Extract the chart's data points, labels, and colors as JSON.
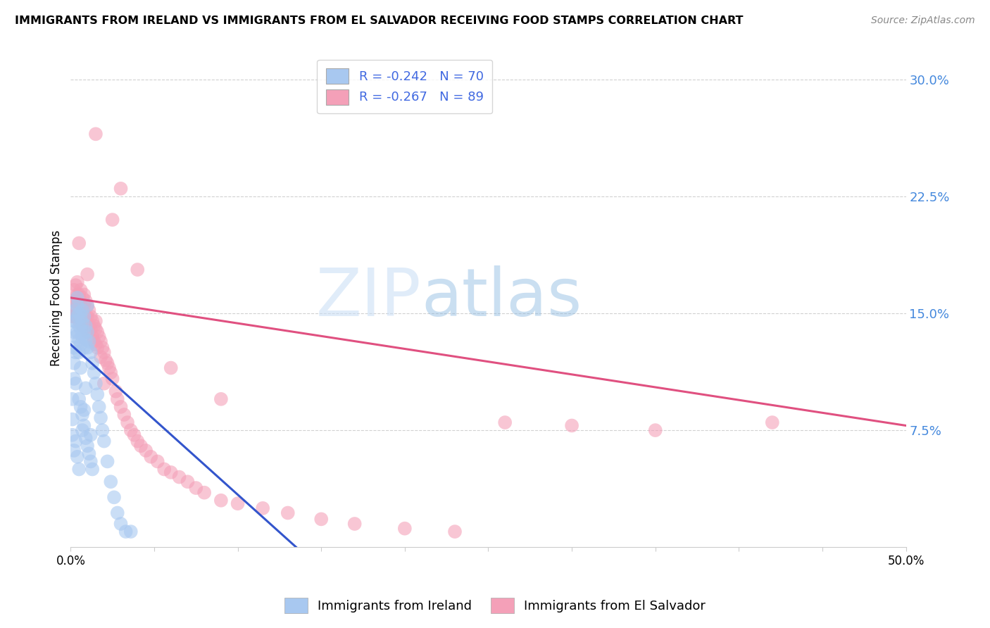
{
  "title": "IMMIGRANTS FROM IRELAND VS IMMIGRANTS FROM EL SALVADOR RECEIVING FOOD STAMPS CORRELATION CHART",
  "source": "Source: ZipAtlas.com",
  "ylabel": "Receiving Food Stamps",
  "ytick_labels": [
    "7.5%",
    "15.0%",
    "22.5%",
    "30.0%"
  ],
  "ytick_values": [
    0.075,
    0.15,
    0.225,
    0.3
  ],
  "xlim": [
    0.0,
    0.5
  ],
  "ylim": [
    0.0,
    0.32
  ],
  "ireland_color": "#a8c8f0",
  "salvador_color": "#f4a0b8",
  "ireland_line_color": "#3355cc",
  "salvador_line_color": "#e05080",
  "ireland_line_x": [
    0.0,
    0.135
  ],
  "ireland_line_y": [
    0.13,
    0.0
  ],
  "salvador_line_x": [
    0.0,
    0.5
  ],
  "salvador_line_y": [
    0.16,
    0.078
  ],
  "ireland_scatter_x": [
    0.001,
    0.001,
    0.001,
    0.002,
    0.002,
    0.002,
    0.002,
    0.002,
    0.003,
    0.003,
    0.003,
    0.003,
    0.003,
    0.004,
    0.004,
    0.004,
    0.004,
    0.005,
    0.005,
    0.005,
    0.005,
    0.005,
    0.006,
    0.006,
    0.006,
    0.006,
    0.007,
    0.007,
    0.007,
    0.007,
    0.008,
    0.008,
    0.008,
    0.008,
    0.009,
    0.009,
    0.009,
    0.01,
    0.01,
    0.01,
    0.011,
    0.011,
    0.012,
    0.012,
    0.013,
    0.013,
    0.014,
    0.015,
    0.016,
    0.017,
    0.018,
    0.019,
    0.02,
    0.022,
    0.024,
    0.026,
    0.028,
    0.03,
    0.033,
    0.036,
    0.002,
    0.003,
    0.004,
    0.005,
    0.006,
    0.007,
    0.008,
    0.009,
    0.01,
    0.012
  ],
  "ireland_scatter_y": [
    0.095,
    0.082,
    0.072,
    0.145,
    0.138,
    0.128,
    0.118,
    0.108,
    0.152,
    0.145,
    0.135,
    0.125,
    0.068,
    0.155,
    0.148,
    0.138,
    0.058,
    0.15,
    0.142,
    0.133,
    0.125,
    0.05,
    0.148,
    0.14,
    0.13,
    0.09,
    0.152,
    0.144,
    0.135,
    0.085,
    0.148,
    0.138,
    0.128,
    0.078,
    0.142,
    0.133,
    0.07,
    0.138,
    0.128,
    0.065,
    0.132,
    0.06,
    0.125,
    0.055,
    0.118,
    0.05,
    0.112,
    0.105,
    0.098,
    0.09,
    0.083,
    0.075,
    0.068,
    0.055,
    0.042,
    0.032,
    0.022,
    0.015,
    0.01,
    0.01,
    0.062,
    0.105,
    0.16,
    0.095,
    0.115,
    0.075,
    0.088,
    0.102,
    0.155,
    0.072
  ],
  "salvador_scatter_x": [
    0.001,
    0.001,
    0.002,
    0.002,
    0.002,
    0.003,
    0.003,
    0.003,
    0.004,
    0.004,
    0.004,
    0.005,
    0.005,
    0.005,
    0.006,
    0.006,
    0.006,
    0.007,
    0.007,
    0.007,
    0.008,
    0.008,
    0.008,
    0.009,
    0.009,
    0.01,
    0.01,
    0.01,
    0.011,
    0.011,
    0.012,
    0.012,
    0.013,
    0.013,
    0.014,
    0.014,
    0.015,
    0.015,
    0.016,
    0.016,
    0.017,
    0.018,
    0.018,
    0.019,
    0.02,
    0.021,
    0.022,
    0.023,
    0.024,
    0.025,
    0.027,
    0.028,
    0.03,
    0.032,
    0.034,
    0.036,
    0.038,
    0.04,
    0.042,
    0.045,
    0.048,
    0.052,
    0.056,
    0.06,
    0.065,
    0.07,
    0.075,
    0.08,
    0.09,
    0.1,
    0.115,
    0.13,
    0.15,
    0.17,
    0.2,
    0.23,
    0.26,
    0.3,
    0.35,
    0.42,
    0.005,
    0.01,
    0.015,
    0.02,
    0.03,
    0.04,
    0.06,
    0.09,
    0.015,
    0.025
  ],
  "salvador_scatter_y": [
    0.155,
    0.148,
    0.165,
    0.158,
    0.148,
    0.168,
    0.158,
    0.148,
    0.17,
    0.162,
    0.152,
    0.162,
    0.155,
    0.145,
    0.165,
    0.158,
    0.148,
    0.16,
    0.152,
    0.142,
    0.162,
    0.155,
    0.145,
    0.158,
    0.148,
    0.155,
    0.148,
    0.138,
    0.152,
    0.142,
    0.148,
    0.14,
    0.145,
    0.135,
    0.142,
    0.132,
    0.14,
    0.13,
    0.138,
    0.128,
    0.135,
    0.132,
    0.122,
    0.128,
    0.125,
    0.12,
    0.118,
    0.115,
    0.112,
    0.108,
    0.1,
    0.095,
    0.09,
    0.085,
    0.08,
    0.075,
    0.072,
    0.068,
    0.065,
    0.062,
    0.058,
    0.055,
    0.05,
    0.048,
    0.045,
    0.042,
    0.038,
    0.035,
    0.03,
    0.028,
    0.025,
    0.022,
    0.018,
    0.015,
    0.012,
    0.01,
    0.08,
    0.078,
    0.075,
    0.08,
    0.195,
    0.175,
    0.145,
    0.105,
    0.23,
    0.178,
    0.115,
    0.095,
    0.265,
    0.21
  ]
}
